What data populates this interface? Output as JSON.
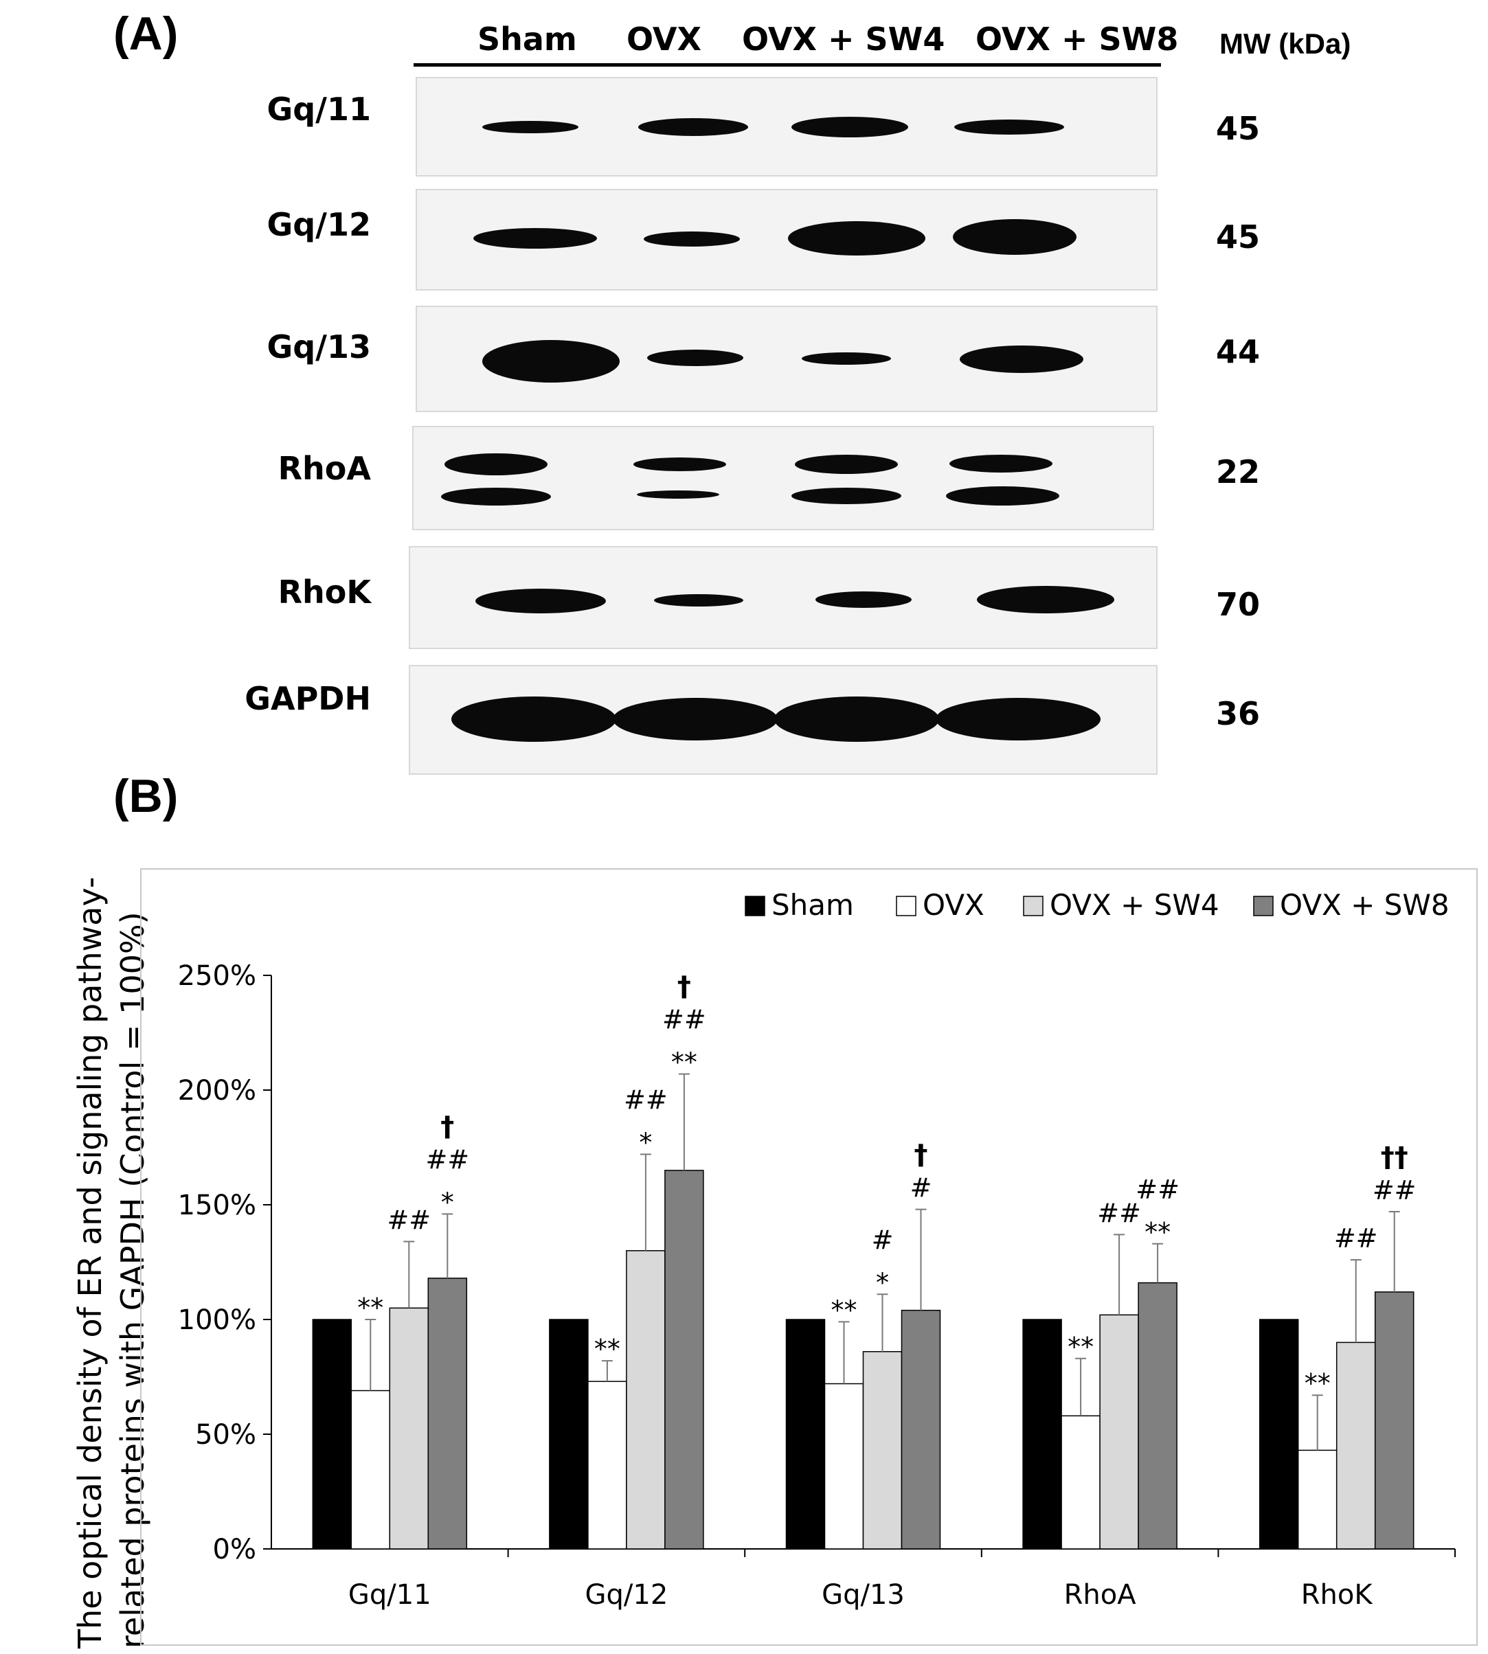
{
  "panel_a": {
    "label": "(A)",
    "lanes": [
      "Sham",
      "OVX",
      "OVX + SW4",
      "OVX + SW8"
    ],
    "mw_header": "MW (kDa)",
    "rows": [
      {
        "name": "Gq/11",
        "mw": "45"
      },
      {
        "name": "Gq/12",
        "mw": "45"
      },
      {
        "name": "Gq/13",
        "mw": "44"
      },
      {
        "name": "RhoA",
        "mw": "22"
      },
      {
        "name": "RhoK",
        "mw": "70"
      },
      {
        "name": "GAPDH",
        "mw": "36"
      }
    ]
  },
  "panel_b": {
    "label": "(B)",
    "ylabel_line1": "The optical density of ER and signaling pathway-",
    "ylabel_line2": "related proteins with GAPDH (Control = 100%)"
  },
  "chart_data": {
    "type": "bar",
    "categories": [
      "Gq/11",
      "Gq/12",
      "Gq/13",
      "RhoA",
      "RhoK"
    ],
    "series": [
      {
        "name": "Sham",
        "color": "#000000",
        "values": [
          100,
          100,
          100,
          100,
          100
        ],
        "errors": [
          0,
          0,
          0,
          0,
          0
        ]
      },
      {
        "name": "OVX",
        "color": "#ffffff",
        "values": [
          69,
          73,
          72,
          58,
          43
        ],
        "errors": [
          31,
          9,
          27,
          25,
          24
        ]
      },
      {
        "name": "OVX + SW4",
        "color": "#d9d9d9",
        "values": [
          105,
          130,
          86,
          102,
          90
        ],
        "errors": [
          29,
          42,
          25,
          35,
          36
        ]
      },
      {
        "name": "OVX + SW8",
        "color": "#808080",
        "values": [
          118,
          165,
          104,
          116,
          112
        ],
        "errors": [
          28,
          42,
          44,
          17,
          35
        ]
      }
    ],
    "annotations": [
      {
        "category": 0,
        "series": 1,
        "lines": [
          "**"
        ]
      },
      {
        "category": 0,
        "series": 2,
        "lines": [
          "##"
        ]
      },
      {
        "category": 0,
        "series": 3,
        "lines": [
          "†",
          "##",
          "*"
        ]
      },
      {
        "category": 1,
        "series": 1,
        "lines": [
          "**"
        ]
      },
      {
        "category": 1,
        "series": 2,
        "lines": [
          "##",
          "*"
        ]
      },
      {
        "category": 1,
        "series": 3,
        "lines": [
          "†",
          "##",
          "**"
        ]
      },
      {
        "category": 2,
        "series": 1,
        "lines": [
          "**"
        ]
      },
      {
        "category": 2,
        "series": 2,
        "lines": [
          "#",
          "*"
        ]
      },
      {
        "category": 2,
        "series": 3,
        "lines": [
          "†",
          "#"
        ]
      },
      {
        "category": 3,
        "series": 1,
        "lines": [
          "**"
        ]
      },
      {
        "category": 3,
        "series": 2,
        "lines": [
          "##"
        ]
      },
      {
        "category": 3,
        "series": 3,
        "lines": [
          "##",
          "**"
        ]
      },
      {
        "category": 4,
        "series": 1,
        "lines": [
          "**"
        ]
      },
      {
        "category": 4,
        "series": 2,
        "lines": [
          "##"
        ]
      },
      {
        "category": 4,
        "series": 3,
        "lines": [
          "††",
          "##"
        ]
      }
    ],
    "yticks": [
      "0%",
      "50%",
      "100%",
      "150%",
      "200%",
      "250%"
    ],
    "ylim": [
      0,
      250
    ],
    "legend_position": "top-right",
    "grid": false
  }
}
